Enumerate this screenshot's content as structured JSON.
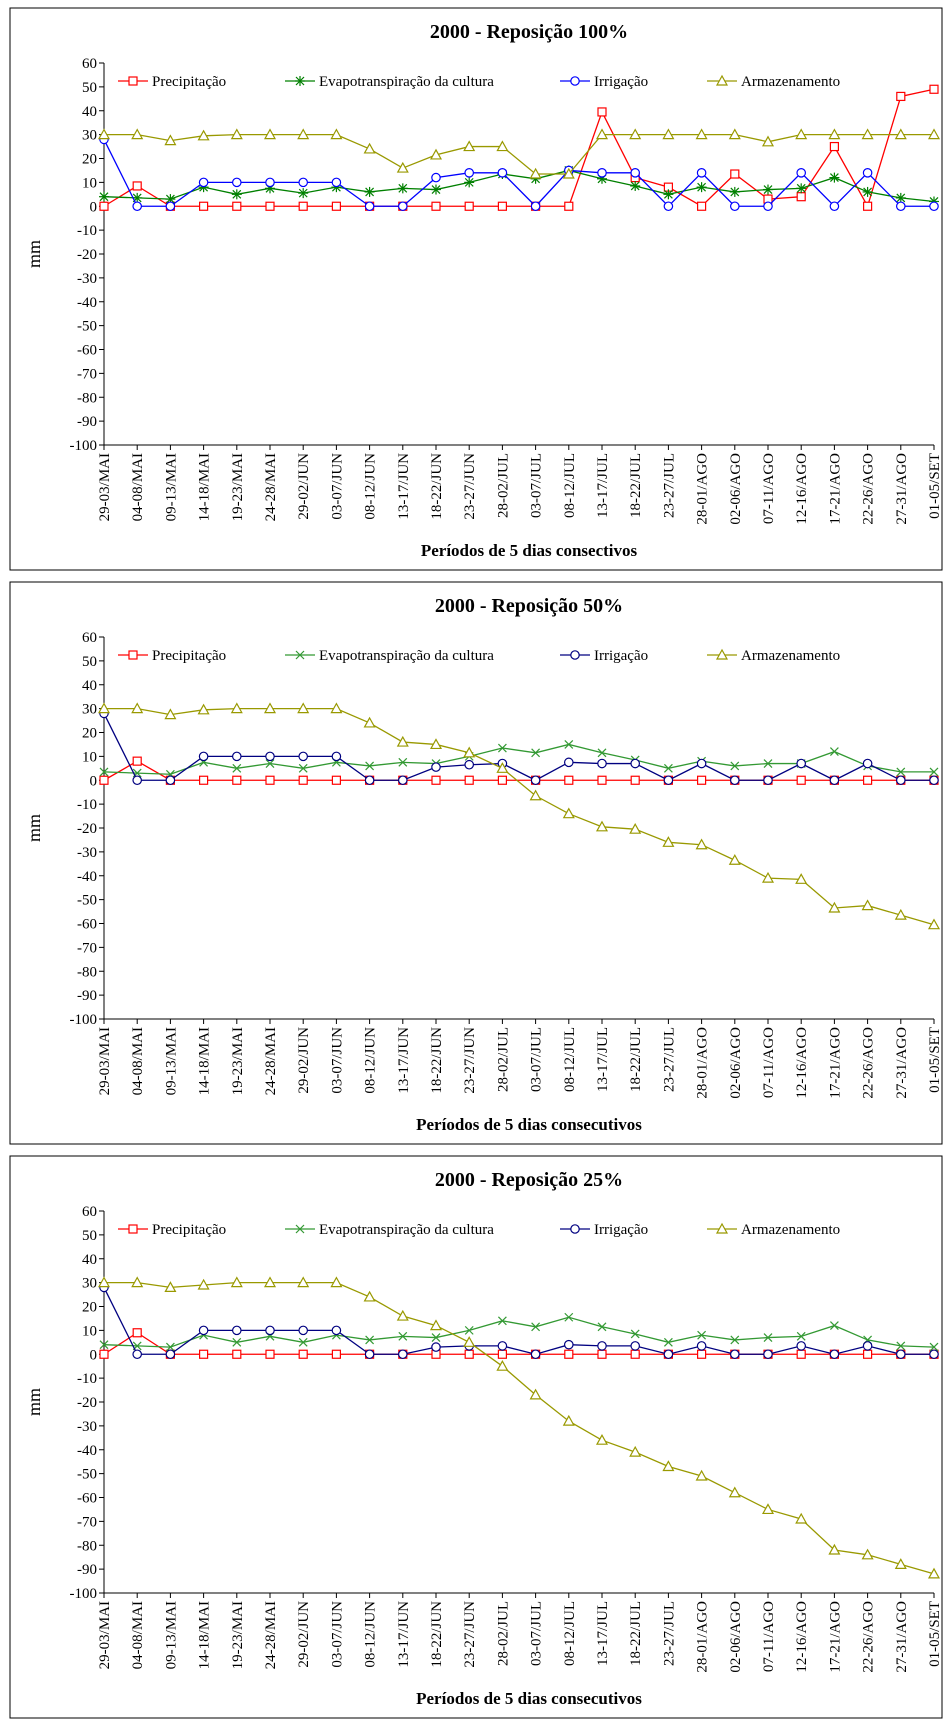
{
  "chart_data": [
    {
      "type": "line",
      "title": "2000 - Reposição 100%",
      "xlabel": "Períodos de 5 dias consectivos",
      "ylabel": "mm",
      "categories": [
        "29-03/MAI",
        "04-08/MAI",
        "09-13/MAI",
        "14-18/MAI",
        "19-23/MAI",
        "24-28/MAI",
        "29-02/JUN",
        "03-07/JUN",
        "08-12/JUN",
        "13-17/JUN",
        "18-22/JUN",
        "23-27/JUN",
        "28-02/JUL",
        "03-07/JUL",
        "08-12/JUL",
        "13-17/JUL",
        "18-22/JUL",
        "23-27/JUL",
        "28-01/AGO",
        "02-06/AGO",
        "07-11/AGO",
        "12-16/AGO",
        "17-21/AGO",
        "22-26/AGO",
        "27-31/AGO",
        "01-05/SET"
      ],
      "ylim": [
        -100,
        60
      ],
      "yticks": [
        -100,
        -90,
        -80,
        -70,
        -60,
        -50,
        -40,
        -30,
        -20,
        -10,
        0,
        10,
        20,
        30,
        40,
        50,
        60
      ],
      "series": [
        {
          "name": "Precipitação",
          "color": "#ff0000",
          "marker": "square",
          "values": [
            0,
            8.5,
            0,
            0,
            0,
            0,
            0,
            0,
            0,
            0,
            0,
            0,
            0,
            0,
            0,
            39.5,
            12,
            8,
            0,
            13.5,
            3,
            4,
            25,
            0,
            46,
            49
          ]
        },
        {
          "name": "Evapotranspiração da cultura",
          "color": "#008000",
          "marker": "asterisk",
          "values": [
            4,
            3.5,
            3,
            8,
            5,
            7.5,
            5.5,
            8,
            6,
            7.5,
            7,
            10,
            13.5,
            11.5,
            15,
            11.5,
            8.5,
            5,
            8,
            6,
            7,
            7.5,
            12,
            6,
            3.5,
            2
          ]
        },
        {
          "name": "Irrigação",
          "color": "#0000ff",
          "marker": "circle",
          "values": [
            28,
            0,
            0,
            10,
            10,
            10,
            10,
            10,
            0,
            0,
            12,
            14,
            14,
            0,
            15,
            14,
            14,
            0,
            14,
            0,
            0,
            14,
            0,
            14,
            0,
            0
          ]
        },
        {
          "name": "Armazenamento",
          "color": "#999900",
          "marker": "triangle",
          "values": [
            30,
            30,
            27.5,
            29.5,
            30,
            30,
            30,
            30,
            24,
            16,
            21.5,
            25,
            25,
            13.5,
            13.5,
            30,
            30,
            30,
            30,
            30,
            27,
            30,
            30,
            30,
            30,
            30
          ]
        }
      ]
    },
    {
      "type": "line",
      "title": "2000 - Reposição 50%",
      "xlabel": "Períodos de 5 dias consecutivos",
      "ylabel": "mm",
      "categories": [
        "29-03/MAI",
        "04-08/MAI",
        "09-13/MAI",
        "14-18/MAI",
        "19-23/MAI",
        "24-28/MAI",
        "29-02/JUN",
        "03-07/JUN",
        "08-12/JUN",
        "13-17/JUN",
        "18-22/JUN",
        "23-27/JUN",
        "28-02/JUL",
        "03-07/JUL",
        "08-12/JUL",
        "13-17/JUL",
        "18-22/JUL",
        "23-27/JUL",
        "28-01/AGO",
        "02-06/AGO",
        "07-11/AGO",
        "12-16/AGO",
        "17-21/AGO",
        "22-26/AGO",
        "27-31/AGO",
        "01-05/SET"
      ],
      "ylim": [
        -100,
        60
      ],
      "yticks": [
        -100,
        -90,
        -80,
        -70,
        -60,
        -50,
        -40,
        -30,
        -20,
        -10,
        0,
        10,
        20,
        30,
        40,
        50,
        60
      ],
      "series": [
        {
          "name": "Precipitação",
          "color": "#ff0000",
          "marker": "square",
          "values": [
            0,
            8,
            0,
            0,
            0,
            0,
            0,
            0,
            0,
            0,
            0,
            0,
            0,
            0,
            0,
            0,
            0,
            0,
            0,
            0,
            0,
            0,
            0,
            0,
            0,
            0
          ]
        },
        {
          "name": "Evapotranspiração da cultura",
          "color": "#339933",
          "marker": "x",
          "values": [
            3.5,
            3,
            2.5,
            7.5,
            5,
            7,
            5,
            7.5,
            6,
            7.5,
            7,
            10,
            13.5,
            11.5,
            15,
            11.5,
            8.5,
            5,
            8,
            6,
            7,
            7,
            12,
            6,
            3.5,
            3.5
          ]
        },
        {
          "name": "Irrigação",
          "color": "#000080",
          "marker": "circle",
          "values": [
            28,
            0,
            0,
            10,
            10,
            10,
            10,
            10,
            0,
            0,
            5.5,
            6.5,
            7,
            0,
            7.5,
            7,
            7,
            0,
            7,
            0,
            0,
            7,
            0,
            7,
            0,
            0
          ]
        },
        {
          "name": "Armazenamento",
          "color": "#999900",
          "marker": "triangle",
          "values": [
            30,
            30,
            27.5,
            29.5,
            30,
            30,
            30,
            30,
            24,
            16,
            15,
            11.5,
            5,
            -6.5,
            -14,
            -19.5,
            -20.5,
            -26,
            -27,
            -33.5,
            -41,
            -41.5,
            -53.5,
            -52.5,
            -56.5,
            -60.5
          ]
        }
      ]
    },
    {
      "type": "line",
      "title": "2000 - Reposição 25%",
      "xlabel": "Períodos de 5 dias consecutivos",
      "ylabel": "mm",
      "categories": [
        "29-03/MAI",
        "04-08/MAI",
        "09-13/MAI",
        "14-18/MAI",
        "19-23/MAI",
        "24-28/MAI",
        "29-02/JUN",
        "03-07/JUN",
        "08-12/JUN",
        "13-17/JUN",
        "18-22/JUN",
        "23-27/JUN",
        "28-02/JUL",
        "03-07/JUL",
        "08-12/JUL",
        "13-17/JUL",
        "18-22/JUL",
        "23-27/JUL",
        "28-01/AGO",
        "02-06/AGO",
        "07-11/AGO",
        "12-16/AGO",
        "17-21/AGO",
        "22-26/AGO",
        "27-31/AGO",
        "01-05/SET"
      ],
      "ylim": [
        -100,
        60
      ],
      "yticks": [
        -100,
        -90,
        -80,
        -70,
        -60,
        -50,
        -40,
        -30,
        -20,
        -10,
        0,
        10,
        20,
        30,
        40,
        50,
        60
      ],
      "series": [
        {
          "name": "Precipitação",
          "color": "#ff0000",
          "marker": "square",
          "values": [
            0,
            9,
            0,
            0,
            0,
            0,
            0,
            0,
            0,
            0,
            0,
            0,
            0,
            0,
            0,
            0,
            0,
            0,
            0,
            0,
            0,
            0,
            0,
            0,
            0,
            0
          ]
        },
        {
          "name": "Evapotranspiração da cultura",
          "color": "#339933",
          "marker": "x",
          "values": [
            4,
            3.5,
            3,
            8,
            5,
            7.5,
            5,
            8,
            6,
            7.5,
            7,
            10,
            14,
            11.5,
            15.5,
            11.5,
            8.5,
            5,
            8,
            6,
            7,
            7.5,
            12,
            6,
            3.5,
            3
          ]
        },
        {
          "name": "Irrigação",
          "color": "#000080",
          "marker": "circle",
          "values": [
            28,
            0,
            0,
            10,
            10,
            10,
            10,
            10,
            0,
            0,
            3,
            3.5,
            3.5,
            0,
            4,
            3.5,
            3.5,
            0,
            3.5,
            0,
            0,
            3.5,
            0,
            3.5,
            0,
            0
          ]
        },
        {
          "name": "Armazenamento",
          "color": "#999900",
          "marker": "triangle",
          "values": [
            30,
            30,
            28,
            29,
            30,
            30,
            30,
            30,
            24,
            16,
            12,
            5,
            -5,
            -17,
            -28,
            -36,
            -41,
            -47,
            -51,
            -58,
            -65,
            -69,
            -82,
            -84,
            -88,
            -92
          ]
        }
      ]
    }
  ]
}
